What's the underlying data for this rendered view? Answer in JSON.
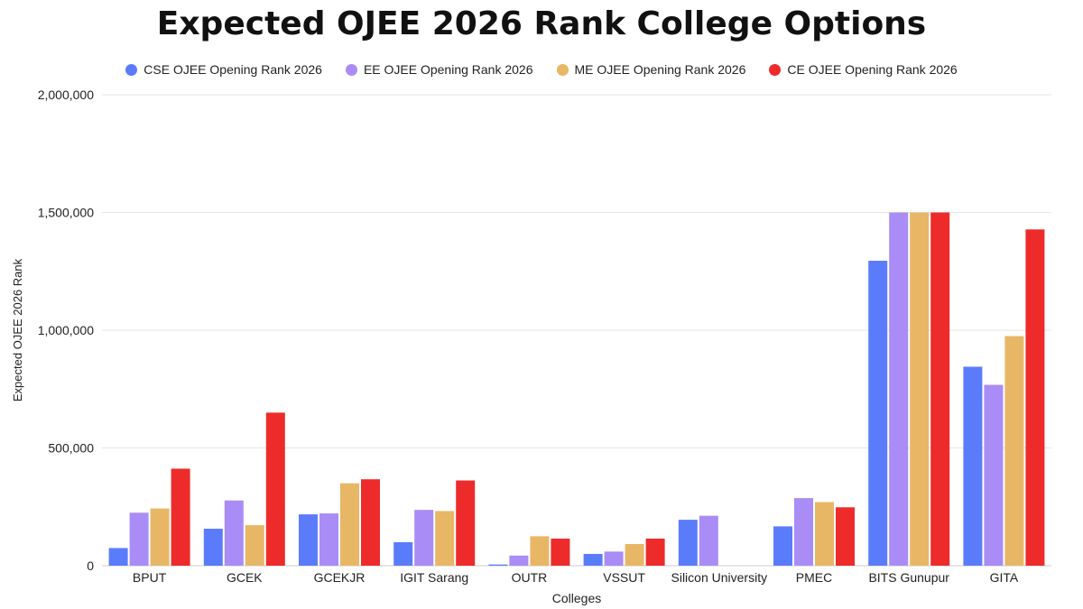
{
  "chart_data": {
    "type": "bar",
    "title": "Expected OJEE 2026 Rank College Options",
    "xlabel": "Colleges",
    "ylabel": "Expected OJEE 2026 Rank",
    "ylim": [
      0,
      2000000
    ],
    "yticks": [
      "0",
      "500,000",
      "1,000,000",
      "1,500,000",
      "2,000,000"
    ],
    "ytick_values": [
      0,
      500000,
      1000000,
      1500000,
      2000000
    ],
    "grid": true,
    "legend_position": "top",
    "categories": [
      "BPUT",
      "GCEK",
      "GCEKJR",
      "IGIT Sarang",
      "OUTR",
      "VSSUT",
      "Silicon University",
      "PMEC",
      "BITS Gunupur",
      "GITA"
    ],
    "series": [
      {
        "name": "CSE OJEE Opening Rank 2026",
        "color": "#5b7cfa",
        "values": [
          75000,
          157000,
          218000,
          100000,
          5000,
          50000,
          195000,
          167000,
          1295000,
          845000
        ]
      },
      {
        "name": "EE OJEE Opening Rank 2026",
        "color": "#a98cf5",
        "values": [
          225000,
          277000,
          222000,
          237000,
          43000,
          60000,
          212000,
          287000,
          1500000,
          768000
        ]
      },
      {
        "name": "ME OJEE Opening Rank 2026",
        "color": "#e8b766",
        "values": [
          243000,
          172000,
          350000,
          232000,
          125000,
          92000,
          null,
          270000,
          1500000,
          975000
        ]
      },
      {
        "name": "CE OJEE Opening Rank 2026",
        "color": "#ee2b2b",
        "values": [
          412000,
          650000,
          367000,
          362000,
          115000,
          115000,
          null,
          248000,
          1500000,
          1428000
        ]
      }
    ]
  }
}
